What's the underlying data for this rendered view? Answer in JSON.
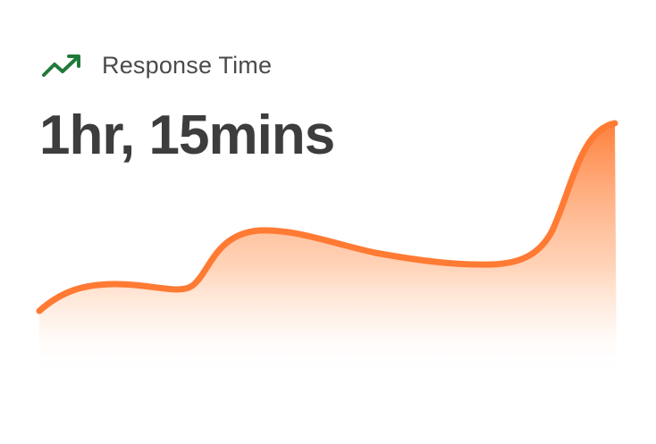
{
  "widget": {
    "title": "Response Time",
    "value": "1hr, 15mins",
    "icon": "trending-up-icon",
    "colors": {
      "accent": "#ff7a33",
      "icon_green": "#1f7a3a",
      "text": "#3d3d3d"
    }
  }
}
